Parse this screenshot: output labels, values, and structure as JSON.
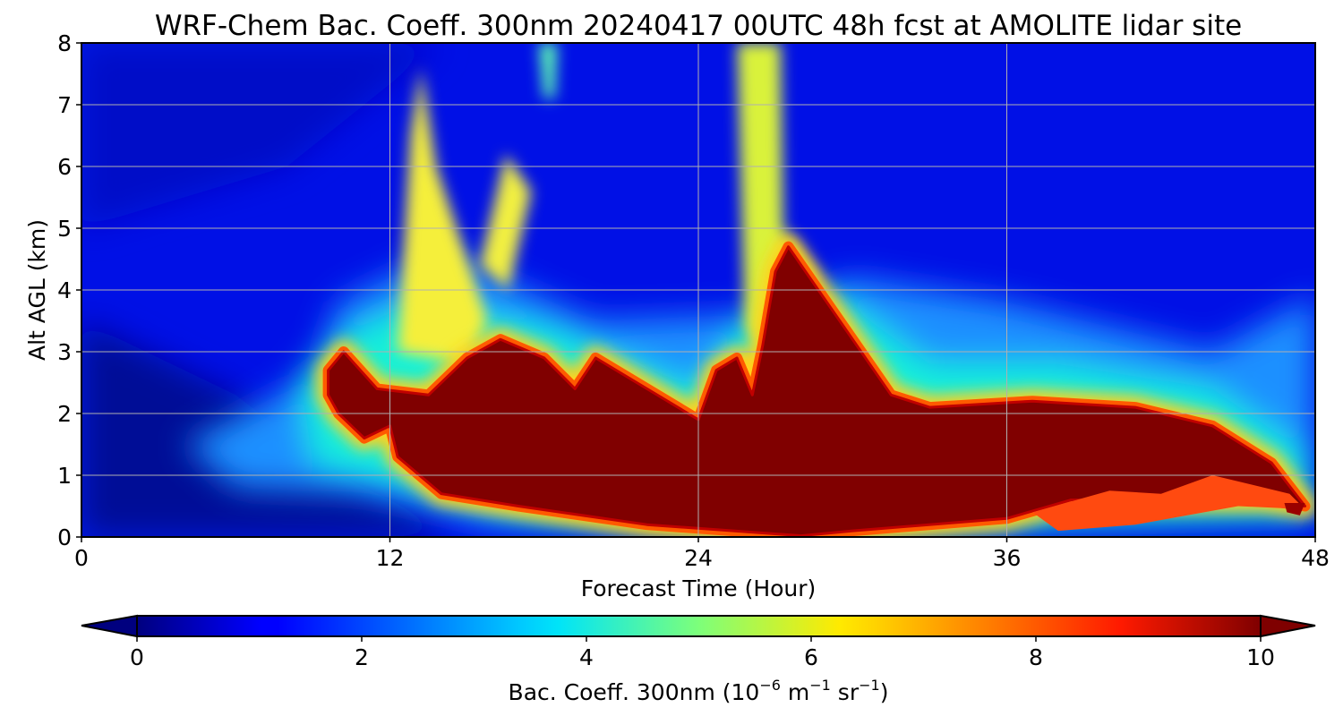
{
  "chart_data": {
    "type": "heatmap",
    "title": "WRF-Chem Bac. Coeff. 300nm  20240417 00UTC 48h fcst at AMOLITE lidar site",
    "xlabel": "Forecast Time (Hour)",
    "ylabel": "Alt AGL (km)",
    "xlim": [
      0,
      48
    ],
    "ylim": [
      0,
      8
    ],
    "xticks": [
      "0",
      "12",
      "24",
      "36",
      "48"
    ],
    "yticks": [
      "0",
      "1",
      "2",
      "3",
      "4",
      "5",
      "6",
      "7",
      "8"
    ],
    "grid": true,
    "colormap": "jet",
    "colorbar": {
      "label_prefix": "Bac. Coeff. 300nm  (10",
      "label_exp1": "−6",
      "label_mid": " m",
      "label_exp2": "−1",
      "label_mid2": " sr",
      "label_exp3": "−1",
      "label_suffix": ")",
      "range": [
        0,
        10
      ],
      "ticks": [
        "0",
        "2",
        "4",
        "6",
        "8",
        "10"
      ],
      "extend": "both"
    },
    "features": [
      {
        "name": "boundary-layer aerosol plume (>10)",
        "value": 10.5,
        "outline_hours_km": [
          [
            9.6,
            2.7
          ],
          [
            10.2,
            3.0
          ],
          [
            11.5,
            2.4
          ],
          [
            13.5,
            2.3
          ],
          [
            15,
            2.9
          ],
          [
            16.3,
            3.2
          ],
          [
            18,
            2.9
          ],
          [
            19.2,
            2.4
          ],
          [
            20,
            2.9
          ],
          [
            22,
            2.4
          ],
          [
            24,
            1.9
          ],
          [
            24.7,
            2.7
          ],
          [
            25.5,
            2.9
          ],
          [
            26.1,
            2.3
          ],
          [
            26.5,
            3.1
          ],
          [
            27,
            4.3
          ],
          [
            27.5,
            4.7
          ],
          [
            29.5,
            3.5
          ],
          [
            31.5,
            2.3
          ],
          [
            33,
            2.1
          ],
          [
            37,
            2.2
          ],
          [
            41,
            2.1
          ],
          [
            44,
            1.8
          ],
          [
            46.3,
            1.2
          ],
          [
            47.6,
            0.5
          ],
          [
            46,
            0.6
          ],
          [
            42,
            0.6
          ],
          [
            38.5,
            0.6
          ],
          [
            36,
            0.3
          ],
          [
            30,
            0.1
          ],
          [
            28,
            0.02
          ],
          [
            22,
            0.2
          ],
          [
            17,
            0.5
          ],
          [
            14,
            0.7
          ],
          [
            12.3,
            1.3
          ],
          [
            12,
            1.8
          ],
          [
            11,
            1.6
          ],
          [
            10,
            2.0
          ],
          [
            9.6,
            2.3
          ]
        ]
      },
      {
        "name": "elevated plume hour 12-14",
        "value": 6,
        "peak_hour": 13,
        "top_km": 7.5
      },
      {
        "name": "elevated plume hour 16-18",
        "value": 6,
        "peak_hour": 16.5,
        "top_km": 6.2
      },
      {
        "name": "elevated plume hour 25-27",
        "value": 6,
        "peak_hour": 26.5,
        "top_km": 8
      }
    ]
  }
}
